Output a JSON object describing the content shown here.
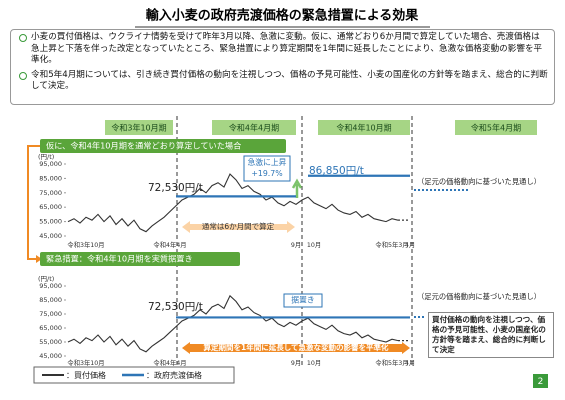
{
  "title": "輸入小麦の政府売渡価格の緊急措置による効果",
  "bullets": [
    "小麦の買付価格は、ウクライナ情勢を受けて昨年3月以降、急激に変動。仮に、通常どおり6か月間で算定していた場合、売渡価格は急上昇と下落を伴った改定となっていたところ、緊急措置により算定期間を1年間に延長したことにより、急激な価格変動の影響を平準化。",
    "令和5年4月期については、引き続き買付価格の動向を注視しつつ、価格の予見可能性、小麦の国産化の方針等を踏まえ、総合的に判断して決定。"
  ],
  "periods": [
    "令和3年10月期",
    "令和4年4月期",
    "令和4年10月期",
    "令和5年4月期"
  ],
  "chart_data": [
    {
      "type": "line",
      "title": "仮に、令和4年10月期を通常どおり算定していた場合",
      "y_label": "(円/t)",
      "categories": [
        null,
        null,
        null,
        "令和3年10月",
        null,
        null,
        null,
        null,
        null,
        null,
        null,
        null,
        null,
        null,
        null,
        null,
        null,
        "令和4年4月",
        null,
        null,
        null,
        null,
        null,
        null,
        null,
        null,
        null,
        null,
        null,
        null,
        null,
        null,
        null,
        null,
        null,
        null,
        null,
        null,
        "9月",
        null,
        null,
        "10月",
        null,
        null,
        null,
        null,
        null,
        null,
        null,
        null,
        null,
        null,
        null,
        null,
        "令和5年3月",
        null,
        null,
        "4月"
      ],
      "ylim": [
        45000,
        95000
      ],
      "yticks": [
        {
          "value": 45000,
          "label": "45,000"
        },
        {
          "value": 55000,
          "label": "55,000"
        },
        {
          "value": 65000,
          "label": "65,000"
        },
        {
          "value": 75000,
          "label": "75,000"
        },
        {
          "value": 85000,
          "label": "85,000"
        },
        {
          "value": 95000,
          "label": "95,000"
        }
      ],
      "series": [
        {
          "name": "：買付価格",
          "color": "#333333",
          "values": [
            55000,
            57000,
            54000,
            58000,
            56000,
            60000,
            55000,
            59000,
            53000,
            57000,
            52000,
            56000,
            50000,
            48000,
            52000,
            55000,
            58000,
            62000,
            66000,
            70000,
            72000,
            74000,
            78000,
            75000,
            80000,
            82000,
            79000,
            88000,
            84000,
            78000,
            80000,
            76000,
            74000,
            70000,
            72000,
            68000,
            66000,
            69000,
            67000,
            70000,
            72000,
            68000,
            66000,
            64000,
            67000,
            63000,
            61000,
            60000,
            62000,
            58000,
            60000,
            57000,
            56000,
            55000,
            57000,
            56000,
            null,
            null
          ]
        },
        {
          "name": "：政府売渡価格",
          "color": "#2e75b6",
          "values": [
            null,
            null,
            null,
            null,
            null,
            null,
            null,
            null,
            null,
            null,
            null,
            null,
            null,
            null,
            null,
            null,
            null,
            null,
            72530,
            72530,
            72530,
            72530,
            72530,
            72530,
            72530,
            72530,
            72530,
            72530,
            72530,
            72530,
            72530,
            72530,
            72530,
            72530,
            72530,
            72530,
            72530,
            72530,
            72530,
            null,
            86850,
            86850,
            86850,
            86850,
            86850,
            86850,
            86850,
            86850,
            86850,
            86850,
            86850,
            86850,
            86850,
            86850,
            86850,
            86850,
            86850,
            86850
          ]
        }
      ],
      "annotations": {
        "price_before": "72,530円/t",
        "rise": "急激に上昇",
        "rise_pct": "+19.7%",
        "price_after": "86,850円/t",
        "outlook": "（足元の価格動向に基づいた見通し）",
        "period_note": "通常は6か月間で算定"
      }
    },
    {
      "type": "line",
      "title": "緊急措置：令和4年10月期を実質据置き",
      "y_label": "(円/t)",
      "categories": [
        null,
        null,
        null,
        "令和3年10月",
        null,
        null,
        null,
        null,
        null,
        null,
        null,
        null,
        null,
        null,
        null,
        null,
        null,
        "令和4年4月",
        null,
        null,
        null,
        null,
        null,
        null,
        null,
        null,
        null,
        null,
        null,
        null,
        null,
        null,
        null,
        null,
        null,
        null,
        null,
        null,
        "9月",
        null,
        null,
        "10月",
        null,
        null,
        null,
        null,
        null,
        null,
        null,
        null,
        null,
        null,
        null,
        null,
        "令和5年3月",
        null,
        null,
        "4月"
      ],
      "ylim": [
        45000,
        95000
      ],
      "yticks": [
        {
          "value": 45000,
          "label": "45,000"
        },
        {
          "value": 55000,
          "label": "55,000"
        },
        {
          "value": 65000,
          "label": "65,000"
        },
        {
          "value": 75000,
          "label": "75,000"
        },
        {
          "value": 85000,
          "label": "85,000"
        },
        {
          "value": 95000,
          "label": "95,000"
        }
      ],
      "series": [
        {
          "color": "#333333",
          "values": [
            55000,
            57000,
            54000,
            58000,
            56000,
            60000,
            55000,
            59000,
            53000,
            57000,
            52000,
            56000,
            50000,
            48000,
            52000,
            55000,
            58000,
            62000,
            66000,
            70000,
            72000,
            74000,
            78000,
            75000,
            80000,
            82000,
            79000,
            88000,
            84000,
            78000,
            80000,
            76000,
            74000,
            70000,
            72000,
            68000,
            66000,
            69000,
            67000,
            70000,
            72000,
            68000,
            66000,
            64000,
            67000,
            63000,
            61000,
            60000,
            62000,
            58000,
            60000,
            57000,
            56000,
            55000,
            57000,
            56000,
            null,
            null
          ]
        },
        {
          "color": "#2e75b6",
          "values": [
            null,
            null,
            null,
            null,
            null,
            null,
            null,
            null,
            null,
            null,
            null,
            null,
            null,
            null,
            null,
            null,
            null,
            null,
            72530,
            72530,
            72530,
            72530,
            72530,
            72530,
            72530,
            72530,
            72530,
            72530,
            72530,
            72530,
            72530,
            72530,
            72530,
            72530,
            72530,
            72530,
            72530,
            72530,
            72530,
            72530,
            72530,
            72530,
            72530,
            72530,
            72530,
            72530,
            72530,
            72530,
            72530,
            72530,
            72530,
            72530,
            72530,
            72530,
            72530,
            72530,
            72530,
            72530
          ]
        }
      ],
      "annotations": {
        "price": "72,530円/t",
        "hold": "据置き",
        "outlook": "（足元の価格動向に基づいた見通し）",
        "period_note": "算定期間を1年間に延長して急激な変動の影響を平準化"
      }
    }
  ],
  "side_note": "買付価格の動向を注視しつつ、価格の予見可能性、小麦の国産化の方針等を踏まえ、総合的に判断して決定",
  "page_number": "2"
}
